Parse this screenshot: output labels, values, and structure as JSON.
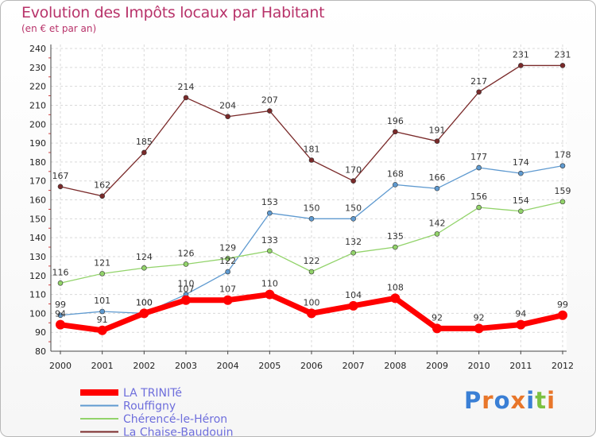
{
  "logo": {
    "text": "Proxiti",
    "letters": [
      "P",
      "r",
      "o",
      "x",
      "i",
      "t",
      "i"
    ],
    "colors": [
      "#3a7fd5",
      "#e8762a",
      "#3a7fd5",
      "#e8762a",
      "#3a7fd5",
      "#7cc142",
      "#e8762a"
    ]
  },
  "chart_data": {
    "type": "line",
    "title": "Evolution des Impôts locaux par Habitant",
    "subtitle": "(en € et par an)",
    "x": [
      "2000",
      "2001",
      "2002",
      "2003",
      "2004",
      "2005",
      "2006",
      "2007",
      "2008",
      "2009",
      "2010",
      "2011",
      "2012"
    ],
    "ylim": [
      80,
      240
    ],
    "yticks": [
      80,
      90,
      100,
      110,
      120,
      130,
      140,
      150,
      160,
      170,
      180,
      190,
      200,
      210,
      220,
      230,
      240
    ],
    "grid": true,
    "legend_position": "bottom-left",
    "series": [
      {
        "name": "La Chaise-Baudouin",
        "color": "#7a2a2a",
        "values": [
          167,
          162,
          185,
          214,
          204,
          207,
          181,
          170,
          196,
          191,
          217,
          231,
          231
        ]
      },
      {
        "name": "Rouffigny",
        "color": "#5f9ad0",
        "values": [
          99,
          101,
          100,
          110,
          122,
          153,
          150,
          150,
          168,
          166,
          177,
          174,
          178
        ]
      },
      {
        "name": "Chérencé-le-Héron",
        "color": "#92d36a",
        "values": [
          116,
          121,
          124,
          126,
          129,
          133,
          122,
          132,
          135,
          142,
          156,
          154,
          159
        ]
      },
      {
        "name": "LA TRINITé",
        "color": "#ff0000",
        "values": [
          94,
          91,
          100,
          107,
          107,
          110,
          100,
          104,
          108,
          92,
          92,
          94,
          99
        ]
      }
    ],
    "legend_order": [
      "LA TRINITé",
      "Rouffigny",
      "Chérencé-le-Héron",
      "La Chaise-Baudouin"
    ]
  }
}
